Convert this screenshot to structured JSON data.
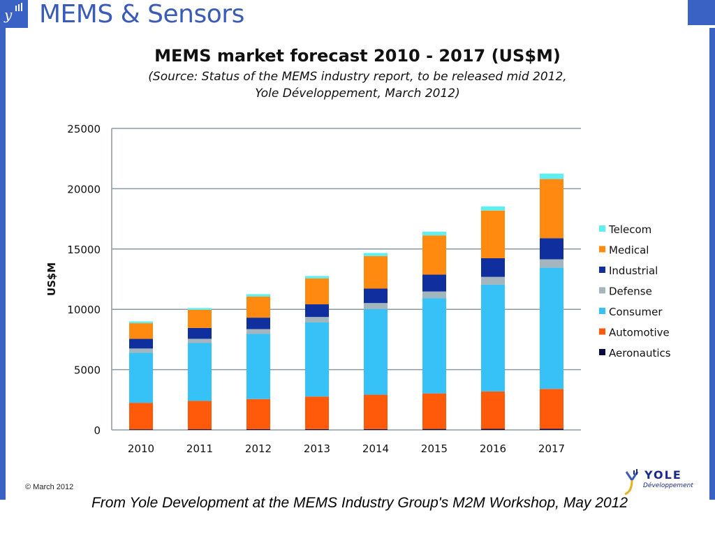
{
  "header": {
    "title": "MEMS & Sensors"
  },
  "footer": {
    "copyright": "© March 2012",
    "logo_text": "YOLE",
    "logo_subtext": "Développement",
    "caption": "From Yole Development at the MEMS Industry Group's M2M Workshop, May 2012"
  },
  "colors": {
    "brand_blue": "#3a62c4",
    "Telecom": "#5ef0f0",
    "Medical": "#ff8a0f",
    "Industrial": "#0f2f9e",
    "Defense": "#a3b6be",
    "Consumer": "#36c2f7",
    "Automotive": "#ff5a0a",
    "Aeronautics": "#0a0a40"
  },
  "chart_data": {
    "type": "bar",
    "stacked": true,
    "title": "MEMS market forecast 2010 - 2017 (US$M)",
    "subtitle_lines": [
      "(Source: Status of the MEMS industry report, to be released mid 2012,",
      "Yole Développement, March 2012)"
    ],
    "xlabel": "",
    "ylabel": "US$M",
    "ylim": [
      0,
      25000
    ],
    "yticks": [
      0,
      5000,
      10000,
      15000,
      20000,
      25000
    ],
    "grid": true,
    "legend_position": "right",
    "categories": [
      "2010",
      "2011",
      "2012",
      "2013",
      "2014",
      "2015",
      "2016",
      "2017"
    ],
    "series": [
      {
        "name": "Aeronautics",
        "values": [
          50,
          55,
          60,
          65,
          70,
          80,
          90,
          100
        ]
      },
      {
        "name": "Automotive",
        "values": [
          2200,
          2350,
          2500,
          2700,
          2850,
          2950,
          3100,
          3300
        ]
      },
      {
        "name": "Consumer",
        "values": [
          4150,
          4800,
          5400,
          6150,
          7100,
          7900,
          8850,
          10050
        ]
      },
      {
        "name": "Defense",
        "values": [
          350,
          350,
          400,
          450,
          500,
          550,
          650,
          700
        ]
      },
      {
        "name": "Industrial",
        "values": [
          800,
          900,
          950,
          1050,
          1200,
          1400,
          1550,
          1750
        ]
      },
      {
        "name": "Medical",
        "values": [
          1300,
          1500,
          1750,
          2150,
          2700,
          3250,
          3950,
          4900
        ]
      },
      {
        "name": "Telecom",
        "values": [
          150,
          150,
          200,
          200,
          250,
          300,
          350,
          450
        ]
      }
    ]
  }
}
